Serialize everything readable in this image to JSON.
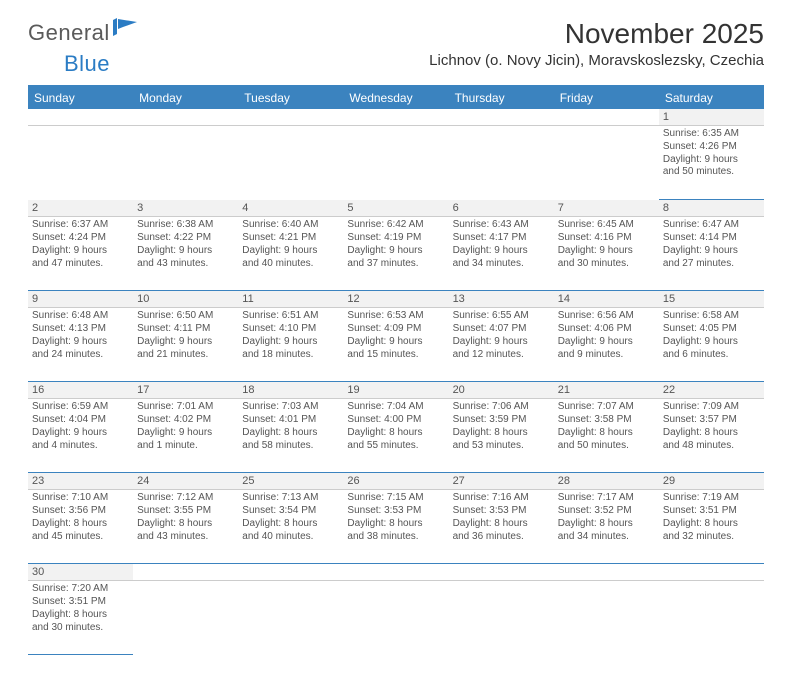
{
  "logo": {
    "text1": "General",
    "text2": "Blue"
  },
  "title": "November 2025",
  "location": "Lichnov (o. Novy Jicin), Moravskoslezsky, Czechia",
  "dayHeaders": [
    "Sunday",
    "Monday",
    "Tuesday",
    "Wednesday",
    "Thursday",
    "Friday",
    "Saturday"
  ],
  "colors": {
    "headerBg": "#3b83bf",
    "accent": "#2b7cc4",
    "text": "#333333"
  },
  "weeks": [
    {
      "nums": [
        "",
        "",
        "",
        "",
        "",
        "",
        "1"
      ],
      "cells": [
        null,
        null,
        null,
        null,
        null,
        null,
        {
          "sunrise": "Sunrise: 6:35 AM",
          "sunset": "Sunset: 4:26 PM",
          "d1": "Daylight: 9 hours",
          "d2": "and 50 minutes."
        }
      ]
    },
    {
      "nums": [
        "2",
        "3",
        "4",
        "5",
        "6",
        "7",
        "8"
      ],
      "cells": [
        {
          "sunrise": "Sunrise: 6:37 AM",
          "sunset": "Sunset: 4:24 PM",
          "d1": "Daylight: 9 hours",
          "d2": "and 47 minutes."
        },
        {
          "sunrise": "Sunrise: 6:38 AM",
          "sunset": "Sunset: 4:22 PM",
          "d1": "Daylight: 9 hours",
          "d2": "and 43 minutes."
        },
        {
          "sunrise": "Sunrise: 6:40 AM",
          "sunset": "Sunset: 4:21 PM",
          "d1": "Daylight: 9 hours",
          "d2": "and 40 minutes."
        },
        {
          "sunrise": "Sunrise: 6:42 AM",
          "sunset": "Sunset: 4:19 PM",
          "d1": "Daylight: 9 hours",
          "d2": "and 37 minutes."
        },
        {
          "sunrise": "Sunrise: 6:43 AM",
          "sunset": "Sunset: 4:17 PM",
          "d1": "Daylight: 9 hours",
          "d2": "and 34 minutes."
        },
        {
          "sunrise": "Sunrise: 6:45 AM",
          "sunset": "Sunset: 4:16 PM",
          "d1": "Daylight: 9 hours",
          "d2": "and 30 minutes."
        },
        {
          "sunrise": "Sunrise: 6:47 AM",
          "sunset": "Sunset: 4:14 PM",
          "d1": "Daylight: 9 hours",
          "d2": "and 27 minutes."
        }
      ]
    },
    {
      "nums": [
        "9",
        "10",
        "11",
        "12",
        "13",
        "14",
        "15"
      ],
      "cells": [
        {
          "sunrise": "Sunrise: 6:48 AM",
          "sunset": "Sunset: 4:13 PM",
          "d1": "Daylight: 9 hours",
          "d2": "and 24 minutes."
        },
        {
          "sunrise": "Sunrise: 6:50 AM",
          "sunset": "Sunset: 4:11 PM",
          "d1": "Daylight: 9 hours",
          "d2": "and 21 minutes."
        },
        {
          "sunrise": "Sunrise: 6:51 AM",
          "sunset": "Sunset: 4:10 PM",
          "d1": "Daylight: 9 hours",
          "d2": "and 18 minutes."
        },
        {
          "sunrise": "Sunrise: 6:53 AM",
          "sunset": "Sunset: 4:09 PM",
          "d1": "Daylight: 9 hours",
          "d2": "and 15 minutes."
        },
        {
          "sunrise": "Sunrise: 6:55 AM",
          "sunset": "Sunset: 4:07 PM",
          "d1": "Daylight: 9 hours",
          "d2": "and 12 minutes."
        },
        {
          "sunrise": "Sunrise: 6:56 AM",
          "sunset": "Sunset: 4:06 PM",
          "d1": "Daylight: 9 hours",
          "d2": "and 9 minutes."
        },
        {
          "sunrise": "Sunrise: 6:58 AM",
          "sunset": "Sunset: 4:05 PM",
          "d1": "Daylight: 9 hours",
          "d2": "and 6 minutes."
        }
      ]
    },
    {
      "nums": [
        "16",
        "17",
        "18",
        "19",
        "20",
        "21",
        "22"
      ],
      "cells": [
        {
          "sunrise": "Sunrise: 6:59 AM",
          "sunset": "Sunset: 4:04 PM",
          "d1": "Daylight: 9 hours",
          "d2": "and 4 minutes."
        },
        {
          "sunrise": "Sunrise: 7:01 AM",
          "sunset": "Sunset: 4:02 PM",
          "d1": "Daylight: 9 hours",
          "d2": "and 1 minute."
        },
        {
          "sunrise": "Sunrise: 7:03 AM",
          "sunset": "Sunset: 4:01 PM",
          "d1": "Daylight: 8 hours",
          "d2": "and 58 minutes."
        },
        {
          "sunrise": "Sunrise: 7:04 AM",
          "sunset": "Sunset: 4:00 PM",
          "d1": "Daylight: 8 hours",
          "d2": "and 55 minutes."
        },
        {
          "sunrise": "Sunrise: 7:06 AM",
          "sunset": "Sunset: 3:59 PM",
          "d1": "Daylight: 8 hours",
          "d2": "and 53 minutes."
        },
        {
          "sunrise": "Sunrise: 7:07 AM",
          "sunset": "Sunset: 3:58 PM",
          "d1": "Daylight: 8 hours",
          "d2": "and 50 minutes."
        },
        {
          "sunrise": "Sunrise: 7:09 AM",
          "sunset": "Sunset: 3:57 PM",
          "d1": "Daylight: 8 hours",
          "d2": "and 48 minutes."
        }
      ]
    },
    {
      "nums": [
        "23",
        "24",
        "25",
        "26",
        "27",
        "28",
        "29"
      ],
      "cells": [
        {
          "sunrise": "Sunrise: 7:10 AM",
          "sunset": "Sunset: 3:56 PM",
          "d1": "Daylight: 8 hours",
          "d2": "and 45 minutes."
        },
        {
          "sunrise": "Sunrise: 7:12 AM",
          "sunset": "Sunset: 3:55 PM",
          "d1": "Daylight: 8 hours",
          "d2": "and 43 minutes."
        },
        {
          "sunrise": "Sunrise: 7:13 AM",
          "sunset": "Sunset: 3:54 PM",
          "d1": "Daylight: 8 hours",
          "d2": "and 40 minutes."
        },
        {
          "sunrise": "Sunrise: 7:15 AM",
          "sunset": "Sunset: 3:53 PM",
          "d1": "Daylight: 8 hours",
          "d2": "and 38 minutes."
        },
        {
          "sunrise": "Sunrise: 7:16 AM",
          "sunset": "Sunset: 3:53 PM",
          "d1": "Daylight: 8 hours",
          "d2": "and 36 minutes."
        },
        {
          "sunrise": "Sunrise: 7:17 AM",
          "sunset": "Sunset: 3:52 PM",
          "d1": "Daylight: 8 hours",
          "d2": "and 34 minutes."
        },
        {
          "sunrise": "Sunrise: 7:19 AM",
          "sunset": "Sunset: 3:51 PM",
          "d1": "Daylight: 8 hours",
          "d2": "and 32 minutes."
        }
      ]
    },
    {
      "nums": [
        "30",
        "",
        "",
        "",
        "",
        "",
        ""
      ],
      "cells": [
        {
          "sunrise": "Sunrise: 7:20 AM",
          "sunset": "Sunset: 3:51 PM",
          "d1": "Daylight: 8 hours",
          "d2": "and 30 minutes."
        },
        null,
        null,
        null,
        null,
        null,
        null
      ]
    }
  ]
}
